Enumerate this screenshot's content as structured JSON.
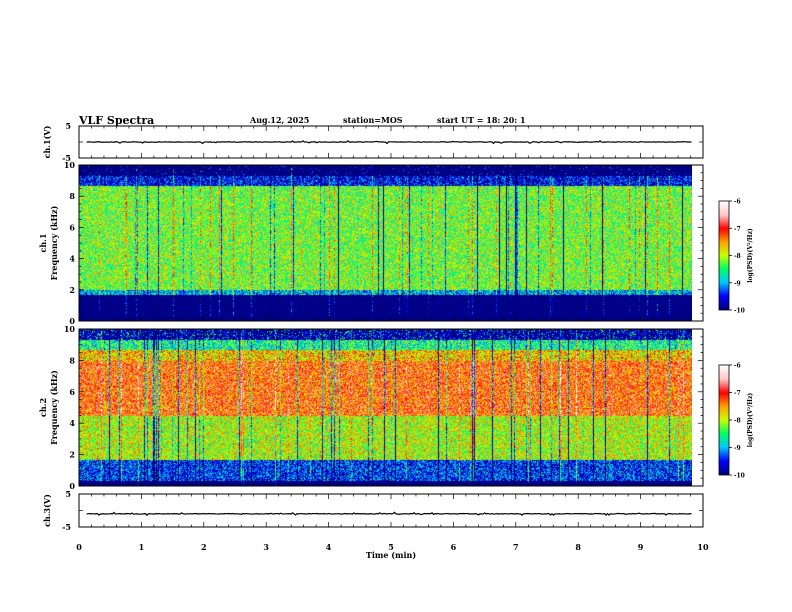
{
  "header": {
    "title": "VLF Spectra",
    "date": "Aug.12, 2025",
    "station": "station=MOS",
    "start": "start  UT  =   18: 20: 1"
  },
  "chart_data": [
    {
      "type": "line",
      "panel": "ch1-waveform",
      "ylabel": "ch.1(V)",
      "ylim": [
        -5,
        5
      ],
      "yticks": [
        "5",
        "-5"
      ],
      "trace_level": 0,
      "color": "#000000"
    },
    {
      "type": "heatmap",
      "panel": "ch1-spectrogram",
      "ylabel": [
        "ch.1",
        "Frequency  (kHz)"
      ],
      "ylim": [
        0,
        10
      ],
      "yticks": [
        "0",
        "2",
        "4",
        "6",
        "8",
        "10"
      ],
      "xlim": [
        0,
        9.83
      ],
      "dominant_band_khz": [
        2,
        9
      ],
      "typical_log_psd": -8.2,
      "colorbar": {
        "label": "log(PSD)(V²/Hz)",
        "range": [
          -10,
          -6
        ],
        "ticks": [
          "-6",
          "-7",
          "-8",
          "-9",
          "-10"
        ]
      }
    },
    {
      "type": "heatmap",
      "panel": "ch2-spectrogram",
      "ylabel": [
        "ch.2",
        "Frequency  (kHz)"
      ],
      "ylim": [
        0,
        10
      ],
      "yticks": [
        "0",
        "2",
        "4",
        "6",
        "8",
        "10"
      ],
      "xlim": [
        0,
        9.83
      ],
      "dominant_band_khz": [
        4.5,
        8
      ],
      "typical_log_psd": -7.2,
      "colorbar": {
        "label": "log(PSD)(V²/Hz)",
        "range": [
          -10,
          -6
        ],
        "ticks": [
          "-6",
          "-7",
          "-8",
          "-9",
          "-10"
        ]
      }
    },
    {
      "type": "line",
      "panel": "ch3-waveform",
      "ylabel": "ch.3(V)",
      "ylim": [
        -5,
        5
      ],
      "yticks": [
        "5",
        "-5"
      ],
      "trace_level": -1,
      "color": "#000000"
    }
  ],
  "xaxis": {
    "label": "Time  (min)",
    "range": [
      0,
      10
    ],
    "ticks": [
      "0",
      "1",
      "2",
      "3",
      "4",
      "5",
      "6",
      "7",
      "8",
      "9",
      "10"
    ]
  },
  "colors": {
    "scale": [
      "#000080",
      "#0000ff",
      "#00c8ff",
      "#00ff64",
      "#c8ff00",
      "#ffa000",
      "#ff0000",
      "#ffc8c8",
      "#ffffff"
    ]
  }
}
